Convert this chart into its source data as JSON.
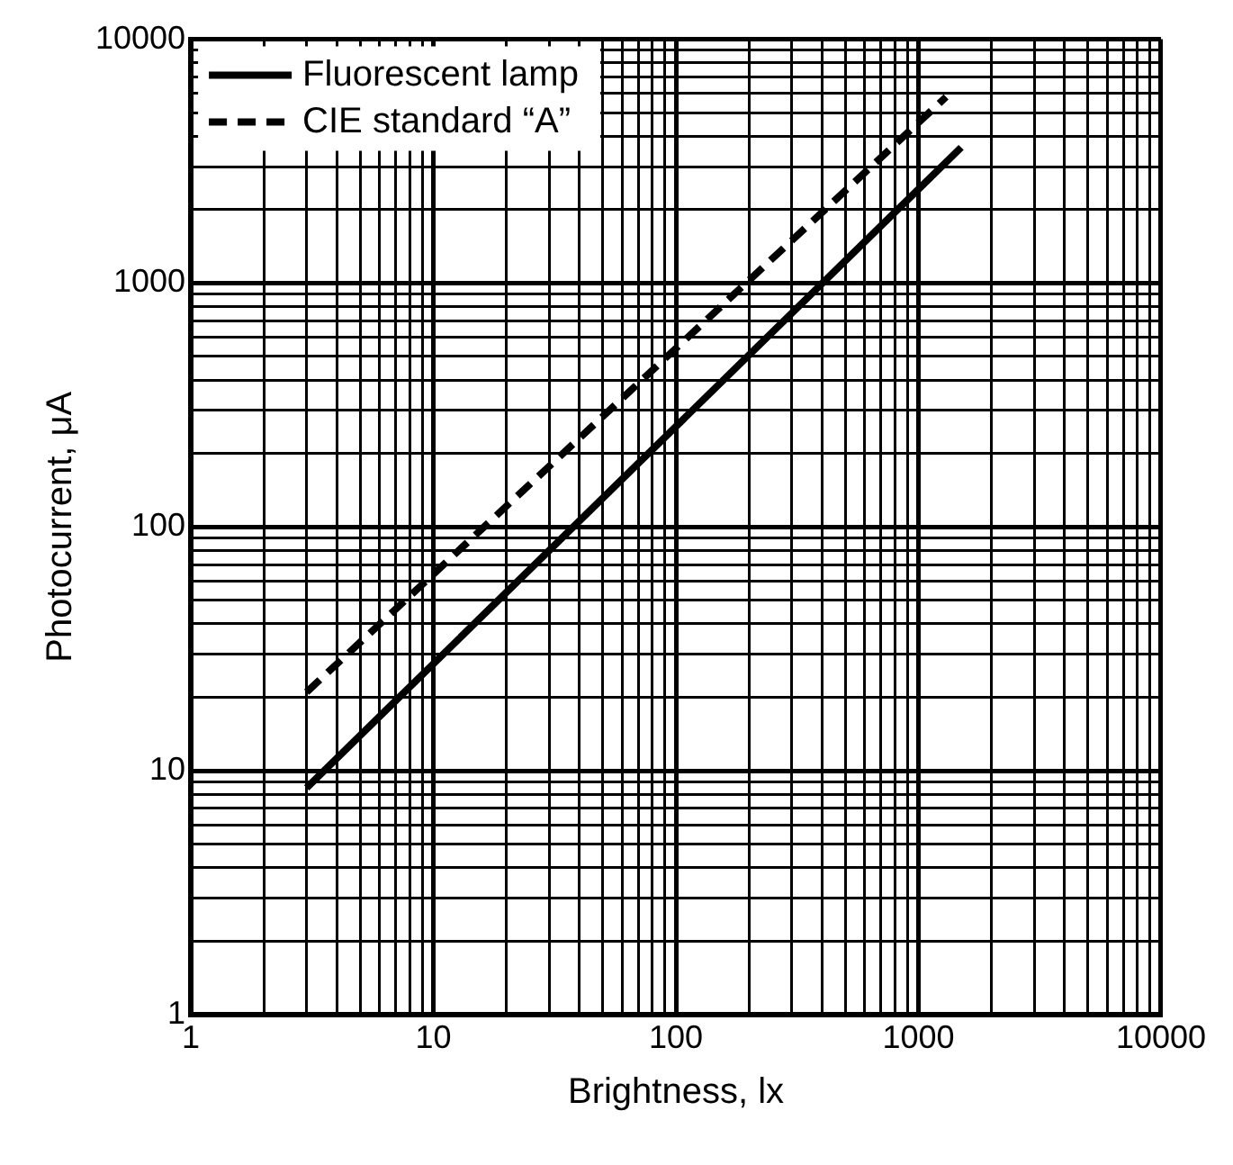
{
  "chart_data": {
    "type": "line",
    "xlabel": "Brightness, lx",
    "ylabel": "Photocurrent, μA",
    "log": "xy",
    "xlim": [
      1,
      10000
    ],
    "ylim": [
      1,
      10000
    ],
    "xticks": [
      1,
      10,
      100,
      1000,
      10000
    ],
    "yticks": [
      1,
      10,
      100,
      1000,
      10000
    ],
    "grid": true,
    "legend": "top left",
    "marker": "none",
    "series": [
      {
        "name": "Fluorescent lamp",
        "color": "#000000",
        "line_style": "solid",
        "x": [
          3,
          1500
        ],
        "values": [
          8.5,
          3600
        ]
      },
      {
        "name": "CIE standard “A”",
        "color": "#000000",
        "line_style": "dashed",
        "x": [
          3,
          1300
        ],
        "values": [
          21,
          5800
        ]
      }
    ]
  }
}
